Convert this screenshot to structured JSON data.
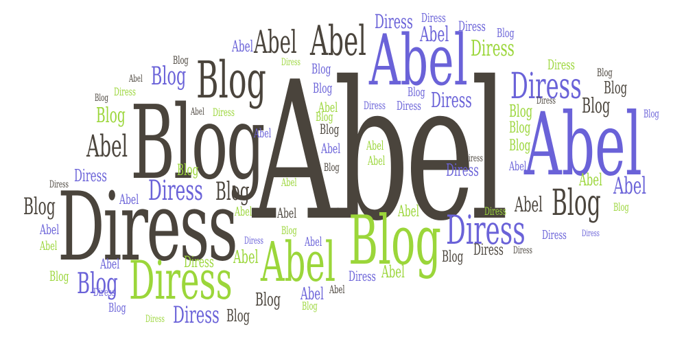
{
  "cloud": {
    "words": {
      "abel": "Abel",
      "blog": "Blog",
      "diress": "Diress"
    },
    "colors": {
      "dark": "#4a443c",
      "blue": "#6a62d8",
      "green": "#9bd63a"
    }
  }
}
